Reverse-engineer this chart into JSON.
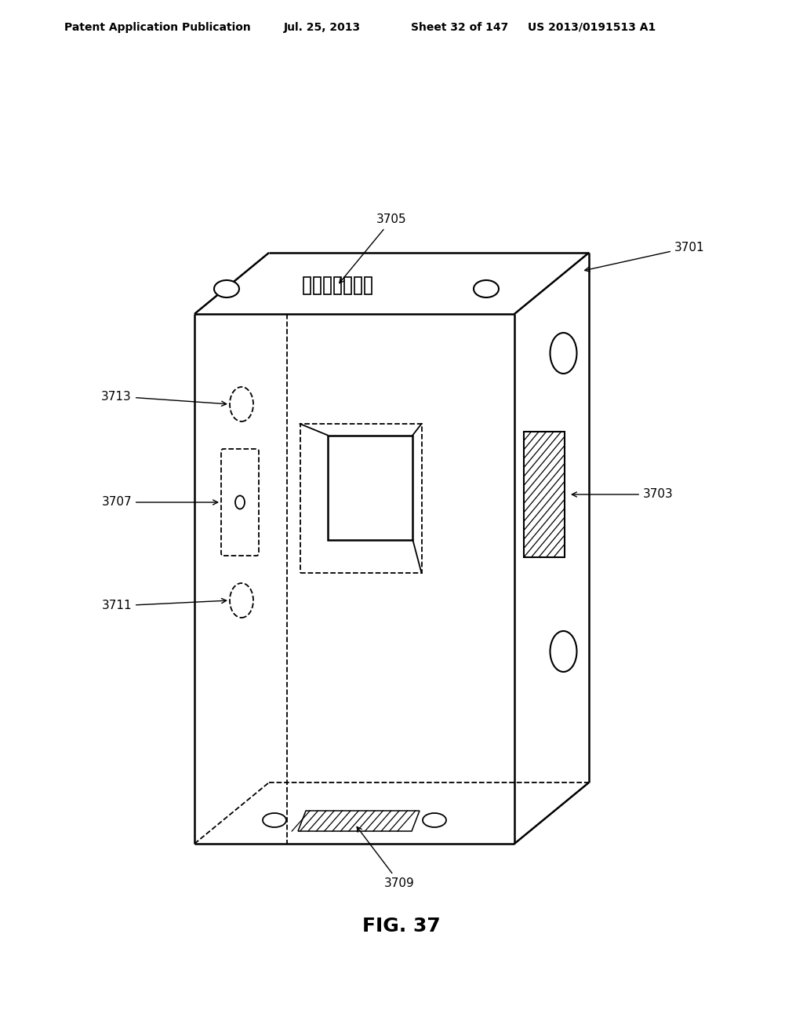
{
  "header_text": "Patent Application Publication",
  "header_date": "Jul. 25, 2013",
  "header_sheet": "Sheet 32 of 147",
  "header_patent": "US 2013/0191513 A1",
  "fig_label": "FIG. 37",
  "bg_color": "#ffffff",
  "line_color": "#000000"
}
